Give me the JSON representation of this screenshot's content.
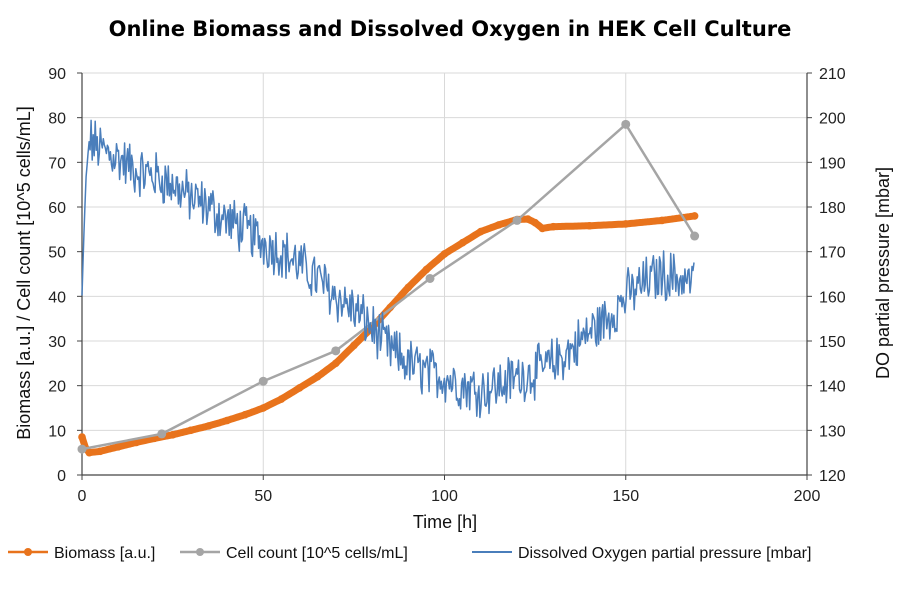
{
  "chart_data": {
    "type": "line",
    "title": "Online Biomass and Dissolved Oxygen in HEK Cell Culture",
    "xlabel": "Time [h]",
    "ylabel_left": "Biomass [a.u.] / Cell count [10^5 cells/mL]",
    "ylabel_right": "DO partial pressure [mbar]",
    "xlim": [
      0,
      200
    ],
    "ylim_left": [
      0,
      90
    ],
    "ylim_right": [
      120,
      210
    ],
    "x_ticks": [
      "0",
      "50",
      "100",
      "150",
      "200"
    ],
    "y_left_ticks": [
      "0",
      "10",
      "20",
      "30",
      "40",
      "50",
      "60",
      "70",
      "80",
      "90"
    ],
    "y_right_ticks": [
      "120",
      "130",
      "140",
      "150",
      "160",
      "170",
      "180",
      "190",
      "200",
      "210"
    ],
    "grid": true,
    "legend_position": "bottom",
    "series": [
      {
        "name": "Biomass [a.u.]",
        "axis": "left",
        "color": "#E8731C",
        "style": "dense-markers",
        "x": [
          0,
          1,
          2,
          5,
          10,
          15,
          20,
          25,
          30,
          35,
          40,
          45,
          50,
          55,
          60,
          65,
          70,
          75,
          80,
          85,
          90,
          95,
          100,
          105,
          110,
          115,
          120,
          123,
          125,
          127,
          130,
          140,
          150,
          160,
          169
        ],
        "y": [
          8.5,
          6,
          5,
          5.3,
          6.3,
          7.3,
          8.2,
          9,
          10,
          11,
          12.2,
          13.5,
          15,
          17,
          19.5,
          22,
          25,
          29,
          33,
          37.5,
          42,
          46,
          49.5,
          52,
          54.5,
          56,
          57.2,
          57.3,
          56.5,
          55.2,
          55.6,
          55.8,
          56.2,
          57,
          58
        ]
      },
      {
        "name": "Cell count [10^5 cells/mL]",
        "axis": "left",
        "color": "#A5A5A5",
        "style": "line-markers",
        "x": [
          0,
          22,
          50,
          70,
          96,
          120,
          150,
          169
        ],
        "y": [
          5.8,
          9.2,
          21,
          27.8,
          44,
          57,
          78.5,
          53.5
        ]
      },
      {
        "name": "Dissolved Oxygen partial pressure [mbar]",
        "axis": "right",
        "color": "#4A7EBB",
        "style": "noisy-line",
        "x": [
          0,
          1,
          2,
          5,
          10,
          15,
          20,
          25,
          30,
          35,
          40,
          45,
          50,
          55,
          60,
          65,
          70,
          75,
          80,
          85,
          90,
          95,
          100,
          105,
          110,
          115,
          120,
          125,
          130,
          135,
          140,
          145,
          150,
          155,
          160,
          165,
          169
        ],
        "y": [
          160,
          185,
          195,
          193,
          191,
          188,
          187,
          185,
          182,
          180,
          177,
          175,
          172,
          170,
          167,
          164,
          160,
          157,
          153,
          148,
          145,
          143,
          142,
          140,
          139,
          140,
          142,
          143,
          145,
          148,
          152,
          155,
          160,
          163,
          165,
          164,
          163
        ]
      }
    ]
  }
}
